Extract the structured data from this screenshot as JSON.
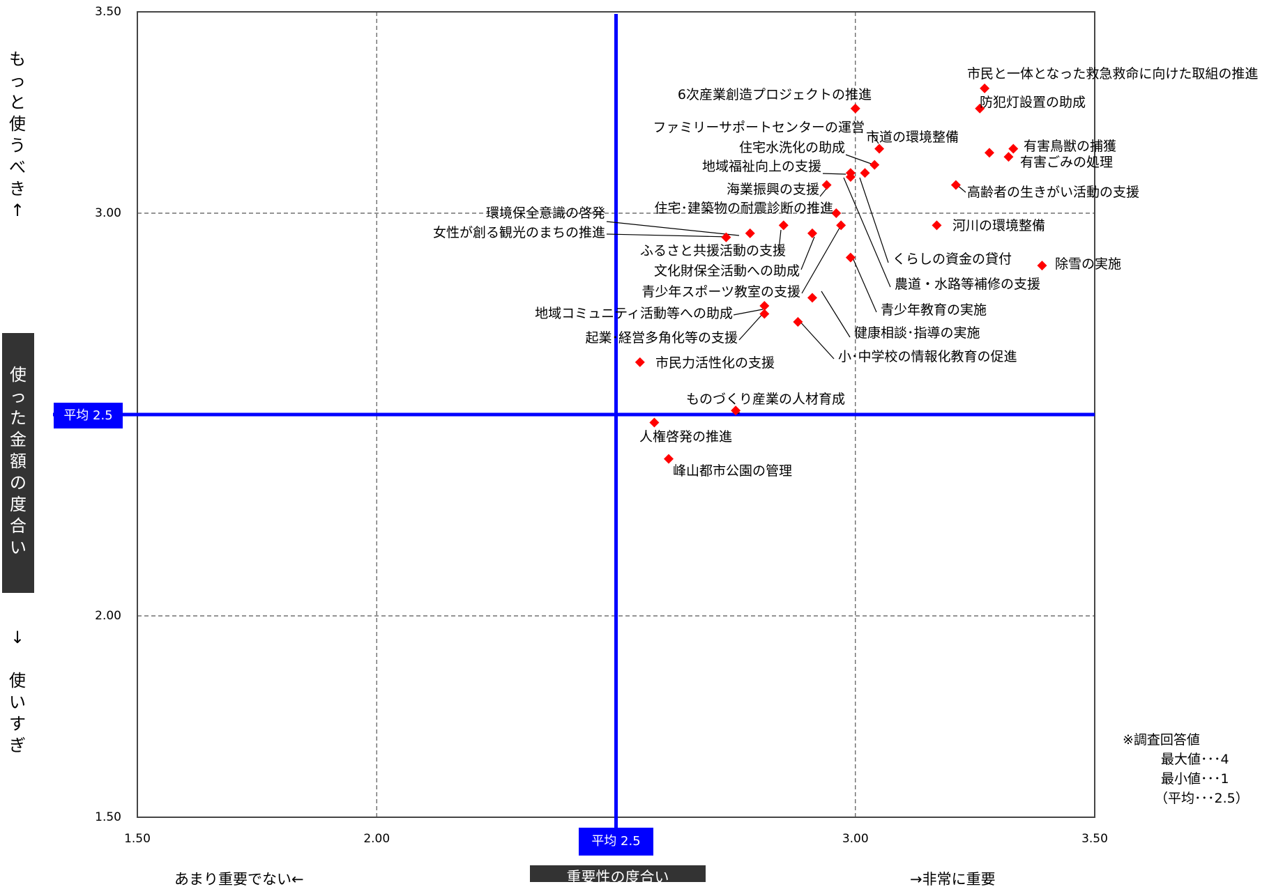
{
  "chart_data": {
    "type": "scatter",
    "xlim": [
      1.5,
      3.5
    ],
    "ylim": [
      1.5,
      3.5
    ],
    "xticks": [
      "1.50",
      "2.00",
      "3.00",
      "3.50"
    ],
    "yticks": [
      "3.50",
      "3.00",
      "2.00",
      "1.50"
    ],
    "grid": true,
    "reference_lines": {
      "x": 2.5,
      "y": 2.5,
      "color": "#0000ff"
    },
    "marker_color": "#ff0000",
    "points": [
      {
        "label": "市民と一体となった救急救命に向けた取組の推進",
        "x": 3.27,
        "y": 3.31
      },
      {
        "label": "防犯灯設置の助成",
        "x": 3.26,
        "y": 3.26
      },
      {
        "label": "6次産業創造プロジェクトの推進",
        "x": 3.0,
        "y": 3.26
      },
      {
        "label": "ファミリーサポートセンターの運営",
        "x": 3.05,
        "y": 3.16
      },
      {
        "label": "市道の環境整備",
        "x": 3.28,
        "y": 3.15
      },
      {
        "label": "有害鳥獣の捕獲",
        "x": 3.33,
        "y": 3.16
      },
      {
        "label": "有害ごみの処理",
        "x": 3.32,
        "y": 3.14
      },
      {
        "label": "住宅水洗化の助成",
        "x": 3.04,
        "y": 3.12
      },
      {
        "label": "地域福祉向上の支援",
        "x": 2.99,
        "y": 3.1
      },
      {
        "label": "くらしの資金の貸付",
        "x": 3.02,
        "y": 3.1
      },
      {
        "label": "農道・水路等補修の支援",
        "x": 2.99,
        "y": 3.09
      },
      {
        "label": "海業振興の支援",
        "x": 2.94,
        "y": 3.07
      },
      {
        "label": "高齢者の生きがい活動の支援",
        "x": 3.21,
        "y": 3.07
      },
      {
        "label": "住宅･建築物の耐震診断の推進",
        "x": 2.96,
        "y": 3.0
      },
      {
        "label": "河川の環境整備",
        "x": 3.17,
        "y": 2.97
      },
      {
        "label": "ふるさと共援活動の支援",
        "x": 2.85,
        "y": 2.97
      },
      {
        "label": "文化財保全活動への助成",
        "x": 2.91,
        "y": 2.95
      },
      {
        "label": "環境保全意識の啓発",
        "x": 2.78,
        "y": 2.95
      },
      {
        "label": "女性が創る観光のまちの推進",
        "x": 2.73,
        "y": 2.94
      },
      {
        "label": "青少年教育の実施",
        "x": 2.99,
        "y": 2.89
      },
      {
        "label": "除雪の実施",
        "x": 3.39,
        "y": 2.87
      },
      {
        "label": "健康相談･指導の実施",
        "x": 2.97,
        "y": 2.97
      },
      {
        "label": "青少年スポーツ教室の支援",
        "x": 2.91,
        "y": 2.79
      },
      {
        "label": "地域コミュニティ活動等への助成",
        "x": 2.81,
        "y": 2.77
      },
      {
        "label": "起業･経営多角化等の支援",
        "x": 2.81,
        "y": 2.75
      },
      {
        "label": "小･中学校の情報化教育の促進",
        "x": 2.88,
        "y": 2.73
      },
      {
        "label": "市民力活性化の支援",
        "x": 2.55,
        "y": 2.63
      },
      {
        "label": "ものづくり産業の人材育成",
        "x": 2.75,
        "y": 2.51
      },
      {
        "label": "人権啓発の推進",
        "x": 2.58,
        "y": 2.48
      },
      {
        "label": "峰山都市公園の管理",
        "x": 2.61,
        "y": 2.39
      }
    ]
  },
  "labels": {
    "y_top": [
      "も",
      "っ",
      "と",
      "使",
      "う",
      "べ",
      "き",
      "↑"
    ],
    "y_mid": [
      "使",
      "っ",
      "た",
      "金",
      "額",
      "の",
      "度",
      "合",
      "い"
    ],
    "y_bottom": [
      "↓",
      "",
      "使",
      "い",
      "す",
      "ぎ"
    ],
    "x_left": "あまり重要でない←",
    "x_center": "重要性の度合い",
    "x_right": "→非常に重要",
    "avg_y_badge": "平均 2.5",
    "avg_x_badge": "平均 2.5",
    "note": [
      "※調査回答値",
      "最大値･･･4",
      "最小値･･･1",
      "（平均･･･2.5）"
    ]
  }
}
